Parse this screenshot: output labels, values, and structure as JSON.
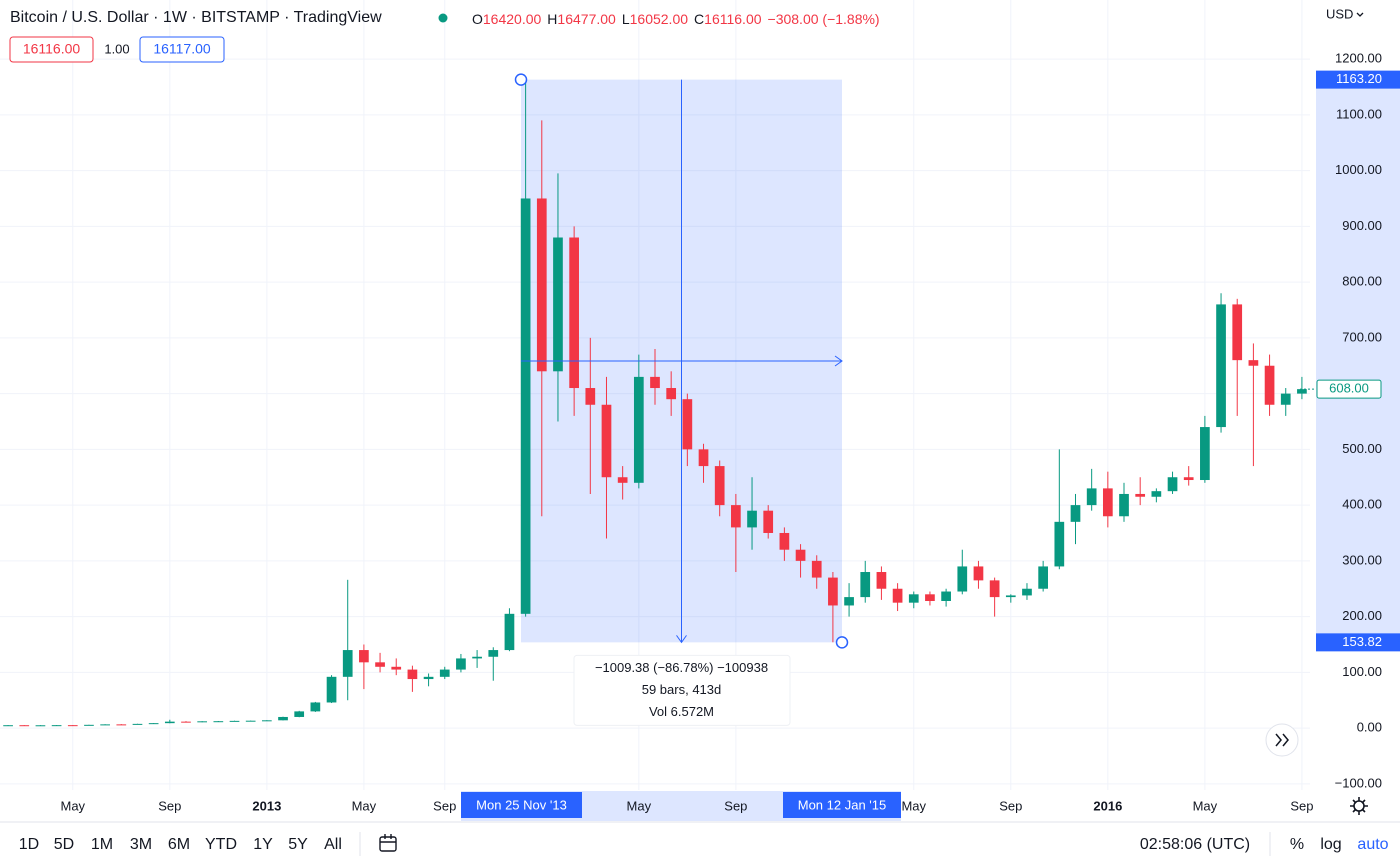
{
  "header": {
    "title": "Bitcoin / U.S. Dollar · 1W · BITSTAMP · TradingView",
    "ohlc": [
      {
        "key": "O",
        "value": "16420.00"
      },
      {
        "key": "H",
        "value": "16477.00"
      },
      {
        "key": "L",
        "value": "16052.00"
      },
      {
        "key": "C",
        "value": "16116.00"
      }
    ],
    "change": "−308.00 (−1.88%)",
    "bid": "16116.00",
    "spread": "1.00",
    "ask": "16117.00",
    "currency": "USD"
  },
  "chart_data": {
    "type": "candlestick",
    "up_color": "#089981",
    "down_color": "#f23645",
    "grid": true,
    "categories": [
      null,
      null,
      null,
      null,
      "May",
      null,
      null,
      null,
      null,
      null,
      "Sep",
      null,
      null,
      null,
      null,
      null,
      "2013",
      null,
      null,
      null,
      null,
      null,
      "May",
      null,
      null,
      null,
      null,
      "Sep",
      null,
      null,
      null,
      null,
      null,
      null,
      null,
      null,
      null,
      null,
      null,
      "May",
      null,
      null,
      null,
      null,
      null,
      "Sep",
      null,
      null,
      null,
      null,
      null,
      null,
      null,
      null,
      null,
      null,
      "May",
      null,
      null,
      null,
      null,
      null,
      "Sep",
      null,
      null,
      null,
      null,
      null,
      "2016",
      null,
      null,
      null,
      null,
      null,
      "May",
      null,
      null,
      null,
      null,
      null,
      "Sep"
    ],
    "ohlc": [
      [
        5,
        5.5,
        4.8,
        5.2
      ],
      [
        5.2,
        5.6,
        4.9,
        5
      ],
      [
        5,
        5.3,
        4.7,
        5.1
      ],
      [
        5.1,
        5.6,
        4.9,
        5.3
      ],
      [
        5.3,
        5.5,
        4.9,
        5.1
      ],
      [
        5.1,
        6,
        5,
        5.9
      ],
      [
        5.9,
        7,
        5.6,
        6.7
      ],
      [
        6.7,
        7.2,
        6.4,
        6.6
      ],
      [
        6.6,
        7.8,
        6.5,
        7.6
      ],
      [
        7.6,
        9,
        7.4,
        8.9
      ],
      [
        8.9,
        15,
        8.7,
        11.6
      ],
      [
        11.6,
        12.5,
        10,
        10.8
      ],
      [
        10.8,
        12.5,
        10.5,
        12.2
      ],
      [
        12.2,
        12.8,
        11.5,
        12.4
      ],
      [
        12.4,
        13.3,
        12,
        13
      ],
      [
        13,
        13.6,
        12.6,
        13.3
      ],
      [
        13.3,
        14.2,
        13,
        14
      ],
      [
        14,
        20.5,
        13.8,
        20
      ],
      [
        20,
        31,
        19.5,
        30
      ],
      [
        30,
        47,
        29,
        46
      ],
      [
        46,
        95,
        45,
        92
      ],
      [
        92,
        266,
        50,
        140
      ],
      [
        140,
        150,
        70,
        118
      ],
      [
        118,
        135,
        100,
        110
      ],
      [
        110,
        125,
        95,
        105
      ],
      [
        105,
        112,
        65,
        88
      ],
      [
        88,
        98,
        75,
        92
      ],
      [
        92,
        110,
        88,
        105
      ],
      [
        105,
        133,
        100,
        125
      ],
      [
        125,
        140,
        108,
        128
      ],
      [
        128,
        145,
        85,
        140
      ],
      [
        140,
        215,
        138,
        205
      ],
      [
        205,
        1163,
        200,
        950
      ],
      [
        950,
        1090,
        380,
        640
      ],
      [
        640,
        995,
        550,
        880
      ],
      [
        880,
        900,
        560,
        610
      ],
      [
        610,
        700,
        420,
        580
      ],
      [
        580,
        630,
        340,
        450
      ],
      [
        450,
        470,
        410,
        440
      ],
      [
        440,
        670,
        430,
        630
      ],
      [
        630,
        680,
        580,
        610
      ],
      [
        610,
        640,
        560,
        590
      ],
      [
        590,
        600,
        470,
        500
      ],
      [
        500,
        510,
        440,
        470
      ],
      [
        470,
        480,
        380,
        400
      ],
      [
        400,
        420,
        280,
        360
      ],
      [
        360,
        450,
        320,
        390
      ],
      [
        390,
        400,
        340,
        350
      ],
      [
        350,
        360,
        300,
        320
      ],
      [
        320,
        330,
        270,
        300
      ],
      [
        300,
        310,
        250,
        270
      ],
      [
        270,
        280,
        154,
        220
      ],
      [
        220,
        260,
        200,
        235
      ],
      [
        235,
        300,
        225,
        280
      ],
      [
        280,
        290,
        230,
        250
      ],
      [
        250,
        260,
        210,
        225
      ],
      [
        225,
        245,
        215,
        240
      ],
      [
        240,
        245,
        220,
        228
      ],
      [
        228,
        250,
        218,
        245
      ],
      [
        245,
        320,
        240,
        290
      ],
      [
        290,
        300,
        250,
        265
      ],
      [
        265,
        270,
        200,
        235
      ],
      [
        235,
        240,
        225,
        238
      ],
      [
        238,
        260,
        230,
        250
      ],
      [
        250,
        300,
        245,
        290
      ],
      [
        290,
        500,
        285,
        370
      ],
      [
        370,
        420,
        330,
        400
      ],
      [
        400,
        465,
        390,
        430
      ],
      [
        430,
        460,
        360,
        380
      ],
      [
        380,
        440,
        370,
        420
      ],
      [
        420,
        450,
        400,
        415
      ],
      [
        415,
        430,
        405,
        425
      ],
      [
        425,
        460,
        420,
        450
      ],
      [
        450,
        470,
        435,
        445
      ],
      [
        445,
        560,
        440,
        540
      ],
      [
        540,
        780,
        530,
        760
      ],
      [
        760,
        770,
        560,
        660
      ],
      [
        660,
        690,
        470,
        650
      ],
      [
        650,
        670,
        560,
        580
      ],
      [
        580,
        610,
        560,
        600
      ],
      [
        600,
        630,
        590,
        608
      ]
    ],
    "ylim": [
      -111,
      1306
    ],
    "yticks": [
      {
        "value": -100,
        "label": "−100.00"
      },
      {
        "value": 0,
        "label": "0.00"
      },
      {
        "value": 100,
        "label": "100.00"
      },
      {
        "value": 200,
        "label": "200.00"
      },
      {
        "value": 300,
        "label": "300.00"
      },
      {
        "value": 400,
        "label": "400.00"
      },
      {
        "value": 500,
        "label": "500.00"
      },
      {
        "value": 600,
        "label": "600.00"
      },
      {
        "value": 700,
        "label": "700.00"
      },
      {
        "value": 800,
        "label": "800.00"
      },
      {
        "value": 900,
        "label": "900.00"
      },
      {
        "value": 1000,
        "label": "1000.00"
      },
      {
        "value": 1100,
        "label": "1100.00"
      },
      {
        "value": 1200,
        "label": "1200.00"
      }
    ],
    "last_price": {
      "value": 608,
      "label": "608.00"
    },
    "measure": {
      "start_date": "Mon 25 Nov '13",
      "end_date": "Mon 12 Jan '15",
      "high": {
        "value": 1163.2,
        "label": "1163.20"
      },
      "low": {
        "value": 153.82,
        "label": "153.82"
      },
      "info": [
        "−1009.38 (−86.78%) −100938",
        "59 bars, 413d",
        "Vol 6.572M"
      ]
    }
  },
  "toolbar": {
    "ranges": [
      "1D",
      "5D",
      "1M",
      "3M",
      "6M",
      "YTD",
      "1Y",
      "5Y",
      "All"
    ],
    "time": "02:58:06 (UTC)",
    "percent": "%",
    "log": "log",
    "auto": "auto"
  }
}
